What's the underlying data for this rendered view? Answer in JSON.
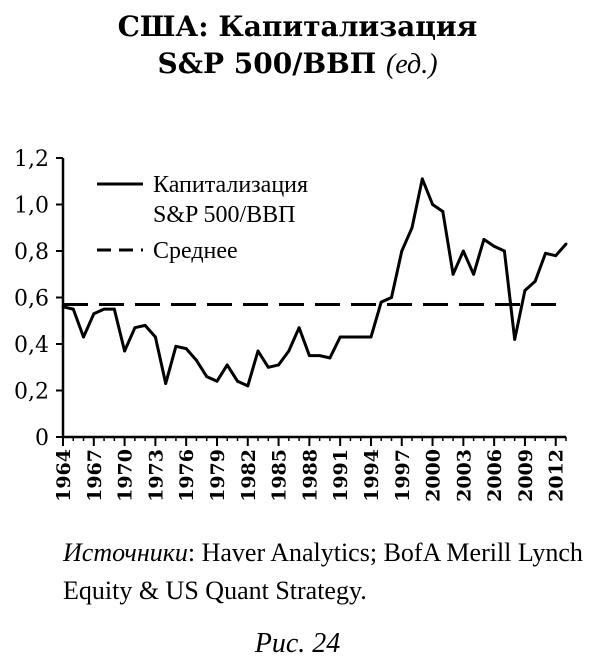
{
  "title_line1": "США: Капитализация",
  "title_line2": "S&P 500/ВВП",
  "title_unit": "(ед.)",
  "source_label": "Источники",
  "source_text": ": Haver Analytics; BofA Merill Lynch Equity & US Quant Strategy.",
  "figure_caption": "Рис. 24",
  "chart_data": {
    "type": "line",
    "x_start": 1964,
    "x_end": 2013,
    "ylim": [
      0,
      1.2
    ],
    "yticks": [
      "0",
      "0,2",
      "0,4",
      "0,6",
      "0,8",
      "1,0",
      "1,2"
    ],
    "xticks": [
      "1964",
      "1967",
      "1970",
      "1973",
      "1976",
      "1979",
      "1982",
      "1985",
      "1988",
      "1991",
      "1994",
      "1997",
      "2000",
      "2003",
      "2006",
      "2009",
      "2012"
    ],
    "legend_position": "top-left",
    "series": [
      {
        "name": "Капитализация S&P 500/ВВП",
        "style": "solid",
        "x": [
          1964,
          1965,
          1966,
          1967,
          1968,
          1969,
          1970,
          1971,
          1972,
          1973,
          1974,
          1975,
          1976,
          1977,
          1978,
          1979,
          1980,
          1981,
          1982,
          1983,
          1984,
          1985,
          1986,
          1987,
          1988,
          1989,
          1990,
          1991,
          1992,
          1993,
          1994,
          1995,
          1996,
          1997,
          1998,
          1999,
          2000,
          2001,
          2002,
          2003,
          2004,
          2005,
          2006,
          2007,
          2008,
          2009,
          2010,
          2011,
          2012,
          2013
        ],
        "values": [
          0.56,
          0.55,
          0.43,
          0.53,
          0.55,
          0.55,
          0.37,
          0.47,
          0.48,
          0.43,
          0.23,
          0.39,
          0.38,
          0.33,
          0.26,
          0.24,
          0.31,
          0.24,
          0.22,
          0.37,
          0.3,
          0.31,
          0.37,
          0.47,
          0.35,
          0.35,
          0.34,
          0.43,
          0.43,
          0.43,
          0.43,
          0.58,
          0.6,
          0.8,
          0.9,
          1.11,
          1.0,
          0.97,
          0.7,
          0.8,
          0.7,
          0.85,
          0.82,
          0.8,
          0.42,
          0.63,
          0.67,
          0.79,
          0.78,
          0.83
        ]
      },
      {
        "name": "Среднее",
        "style": "dashed",
        "values": [
          0.57
        ]
      }
    ],
    "legend": [
      {
        "line1": "Капитализация",
        "line2": "S&P 500/ВВП"
      },
      {
        "line1": "Среднее",
        "line2": ""
      }
    ]
  }
}
